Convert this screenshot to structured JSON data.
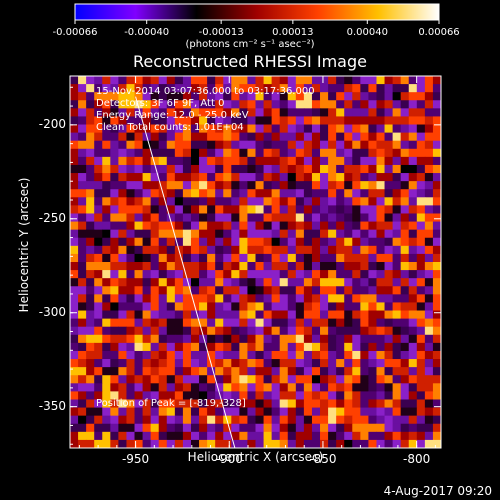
{
  "chart_data": {
    "type": "heatmap",
    "title": "Reconstructed RHESSI Image",
    "xlabel": "Heliocentric X (arcsec)",
    "ylabel": "Heliocentric Y (arcsec)",
    "xlim": [
      -985,
      -787
    ],
    "ylim": [
      -372,
      -174
    ],
    "x_ticks": [
      "-950",
      "-900",
      "-850",
      "-800"
    ],
    "y_ticks": [
      "-200",
      "-250",
      "-300",
      "-350"
    ],
    "x_tick_values": [
      -950,
      -900,
      -850,
      -800
    ],
    "y_tick_values": [
      -200,
      -250,
      -300,
      -350
    ],
    "colorbar": {
      "label": "(photons cm⁻² s⁻¹ asec⁻²)",
      "tick_labels": [
        "-0.00066",
        "-0.00040",
        "-0.00013",
        "0.00013",
        "0.00040",
        "0.00066"
      ],
      "range": [
        -0.00066,
        0.00066
      ],
      "colors": [
        "#0000ff",
        "#8000ff",
        "#000000",
        "#a00000",
        "#ff4000",
        "#ffc000",
        "#ffffff"
      ]
    },
    "annotations": [
      "15-Nov-2014 03:07:36.000 to 03:17:36.000",
      "Detectors: 3F 6F 9F, Att 0",
      "Energy Range: 12.0 - 25.0 keV",
      "Clean    Total counts: 1.01E+04"
    ],
    "peak_label": "Position of Peak = [-819,-328]",
    "limb_line": [
      [
        -950,
        -185
      ],
      [
        -897,
        -372
      ]
    ],
    "grid": false,
    "legend": "none"
  },
  "footer": "4-Aug-2017 09:20"
}
